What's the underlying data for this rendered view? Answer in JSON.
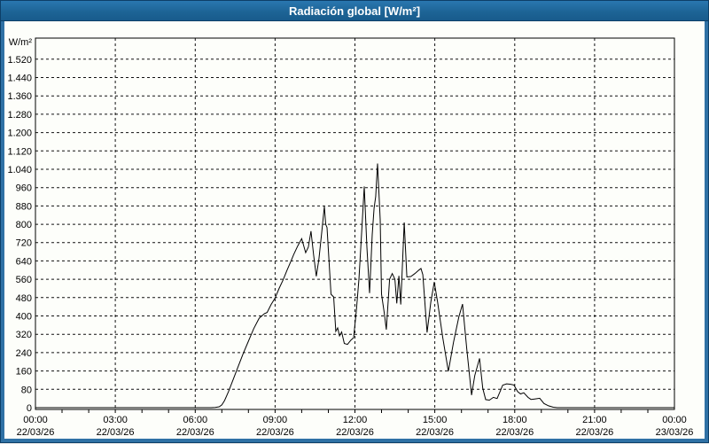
{
  "window": {
    "title": "Radiación global [W/m²]"
  },
  "colors": {
    "titlebar": "#1d6496",
    "frame": "#2f71a5",
    "frame_edge": "#0d3f68",
    "plot_bg": "#fdfefa",
    "grid": "#111111",
    "line": "#000000",
    "text": "#000000"
  },
  "chart_data": {
    "type": "line",
    "title": "Radiación global [W/m²]",
    "ylabel": "W/m²",
    "xlabel": "",
    "grid": "dashed",
    "legend": "none",
    "ylim": [
      0,
      1612
    ],
    "xlim_hours": [
      0,
      24
    ],
    "y_tick_step": 80,
    "y_tick_labels": [
      "0",
      "80",
      "160",
      "240",
      "320",
      "400",
      "480",
      "560",
      "640",
      "720",
      "800",
      "880",
      "960",
      "1.040",
      "1.120",
      "1.200",
      "1.280",
      "1.360",
      "1.440",
      "1.520"
    ],
    "x_ticks": [
      {
        "hour": 0,
        "time": "00:00",
        "date": "22/03/26"
      },
      {
        "hour": 3,
        "time": "03:00",
        "date": "22/03/26"
      },
      {
        "hour": 6,
        "time": "06:00",
        "date": "22/03/26"
      },
      {
        "hour": 9,
        "time": "09:00",
        "date": "22/03/26"
      },
      {
        "hour": 12,
        "time": "12:00",
        "date": "22/03/26"
      },
      {
        "hour": 15,
        "time": "15:00",
        "date": "22/03/26"
      },
      {
        "hour": 18,
        "time": "18:00",
        "date": "22/03/26"
      },
      {
        "hour": 21,
        "time": "21:00",
        "date": "22/03/26"
      },
      {
        "hour": 24,
        "time": "00:00",
        "date": "23/03/26"
      }
    ],
    "minor_x_tick_every_hours": 1,
    "points": [
      [
        0.0,
        0
      ],
      [
        6.6,
        0
      ],
      [
        6.75,
        1
      ],
      [
        6.9,
        4
      ],
      [
        7.0,
        12
      ],
      [
        7.1,
        30
      ],
      [
        7.25,
        70
      ],
      [
        7.4,
        115
      ],
      [
        7.6,
        175
      ],
      [
        7.8,
        235
      ],
      [
        8.0,
        290
      ],
      [
        8.2,
        345
      ],
      [
        8.4,
        390
      ],
      [
        8.6,
        410
      ],
      [
        8.7,
        415
      ],
      [
        8.85,
        450
      ],
      [
        9.0,
        478
      ],
      [
        9.15,
        520
      ],
      [
        9.3,
        557
      ],
      [
        9.45,
        600
      ],
      [
        9.6,
        640
      ],
      [
        9.7,
        668
      ],
      [
        9.85,
        705
      ],
      [
        10.0,
        737
      ],
      [
        10.15,
        676
      ],
      [
        10.25,
        700
      ],
      [
        10.35,
        770
      ],
      [
        10.45,
        665
      ],
      [
        10.55,
        573
      ],
      [
        10.65,
        650
      ],
      [
        10.75,
        760
      ],
      [
        10.85,
        878
      ],
      [
        10.9,
        800
      ],
      [
        10.95,
        786
      ],
      [
        11.1,
        495
      ],
      [
        11.2,
        483
      ],
      [
        11.28,
        333
      ],
      [
        11.35,
        348
      ],
      [
        11.42,
        313
      ],
      [
        11.5,
        330
      ],
      [
        11.6,
        280
      ],
      [
        11.72,
        276
      ],
      [
        11.85,
        295
      ],
      [
        11.95,
        305
      ],
      [
        12.05,
        420
      ],
      [
        12.15,
        560
      ],
      [
        12.25,
        760
      ],
      [
        12.35,
        965
      ],
      [
        12.45,
        700
      ],
      [
        12.55,
        500
      ],
      [
        12.65,
        755
      ],
      [
        12.72,
        870
      ],
      [
        12.78,
        920
      ],
      [
        12.85,
        1065
      ],
      [
        12.95,
        820
      ],
      [
        13.0,
        495
      ],
      [
        13.1,
        415
      ],
      [
        13.18,
        340
      ],
      [
        13.3,
        560
      ],
      [
        13.4,
        585
      ],
      [
        13.5,
        560
      ],
      [
        13.57,
        455
      ],
      [
        13.65,
        575
      ],
      [
        13.72,
        450
      ],
      [
        13.85,
        808
      ],
      [
        13.95,
        570
      ],
      [
        14.1,
        572
      ],
      [
        14.25,
        585
      ],
      [
        14.4,
        600
      ],
      [
        14.48,
        607
      ],
      [
        14.55,
        580
      ],
      [
        14.71,
        328
      ],
      [
        14.85,
        460
      ],
      [
        14.98,
        548
      ],
      [
        15.1,
        465
      ],
      [
        15.3,
        305
      ],
      [
        15.51,
        158
      ],
      [
        15.7,
        285
      ],
      [
        15.9,
        395
      ],
      [
        16.04,
        452
      ],
      [
        16.2,
        255
      ],
      [
        16.38,
        55
      ],
      [
        16.5,
        140
      ],
      [
        16.68,
        215
      ],
      [
        16.8,
        85
      ],
      [
        16.91,
        35
      ],
      [
        17.05,
        33
      ],
      [
        17.2,
        45
      ],
      [
        17.34,
        40
      ],
      [
        17.45,
        70
      ],
      [
        17.55,
        98
      ],
      [
        17.7,
        104
      ],
      [
        17.85,
        102
      ],
      [
        17.97,
        99
      ],
      [
        18.11,
        70
      ],
      [
        18.22,
        60
      ],
      [
        18.34,
        65
      ],
      [
        18.5,
        45
      ],
      [
        18.61,
        36
      ],
      [
        18.75,
        38
      ],
      [
        18.94,
        41
      ],
      [
        19.1,
        18
      ],
      [
        19.27,
        8
      ],
      [
        19.45,
        2
      ],
      [
        19.6,
        0
      ],
      [
        24.0,
        0
      ]
    ]
  }
}
